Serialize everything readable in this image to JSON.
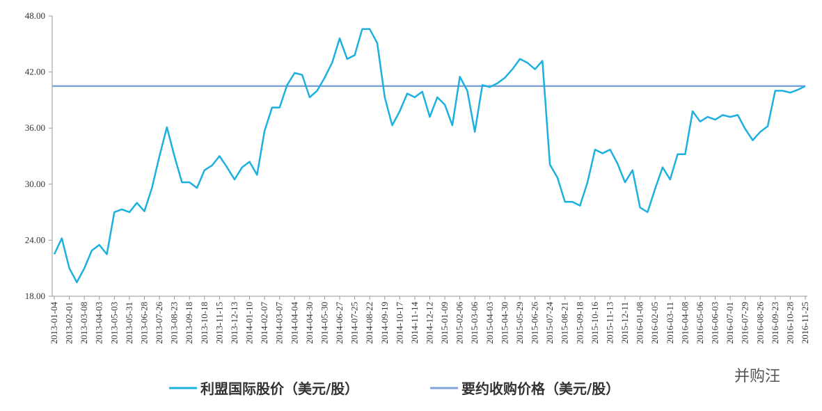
{
  "chart_data": {
    "type": "line",
    "categories": [
      "2013-01-04",
      null,
      "2013-02-01",
      null,
      "2013-03-08",
      null,
      "2013-04-03",
      null,
      "2013-05-03",
      null,
      "2013-05-31",
      null,
      "2013-06-28",
      null,
      "2013-07-26",
      null,
      "2013-08-23",
      null,
      "2013-09-18",
      null,
      "2013-10-18",
      null,
      "2013-11-15",
      null,
      "2013-12-13",
      null,
      "2014-01-10",
      null,
      "2014-02-07",
      null,
      "2014-03-07",
      null,
      "2014-04-04",
      null,
      "2014-04-30",
      null,
      "2014-05-30",
      null,
      "2014-06-27",
      null,
      "2014-07-25",
      null,
      "2014-08-22",
      null,
      "2014-09-19",
      null,
      "2014-10-17",
      null,
      "2014-11-14",
      null,
      "2014-12-12",
      null,
      "2015-01-09",
      null,
      "2015-02-06",
      null,
      "2015-03-06",
      null,
      "2015-04-03",
      null,
      "2015-04-30",
      null,
      "2015-05-29",
      null,
      "2015-06-26",
      null,
      "2015-07-24",
      null,
      "2015-08-21",
      null,
      "2015-09-18",
      null,
      "2015-10-16",
      null,
      "2015-11-13",
      null,
      "2015-12-11",
      null,
      "2016-01-08",
      null,
      "2016-02-05",
      null,
      "2016-03-11",
      null,
      "2016-04-08",
      null,
      "2016-05-06",
      null,
      "2016-06-03",
      null,
      "2016-07-01",
      null,
      "2016-07-29",
      null,
      "2016-08-26",
      null,
      "2016-09-23",
      null,
      "2016-10-28",
      null,
      "2016-11-25"
    ],
    "series": [
      {
        "name": "利盟国际股价（美元/股）",
        "color": "#1cb0e0",
        "values": [
          22.5,
          24.2,
          21,
          19.5,
          21,
          22.9,
          23.5,
          22.5,
          27,
          27.3,
          27,
          28,
          27.1,
          29.6,
          33,
          36.1,
          33,
          30.2,
          30.2,
          29.6,
          31.5,
          32,
          33,
          31.8,
          30.5,
          31.8,
          32.4,
          31,
          35.7,
          38.2,
          38.2,
          40.6,
          41.9,
          41.7,
          39.3,
          40,
          41.4,
          43,
          45.6,
          43.4,
          43.8,
          46.6,
          46.6,
          45.1,
          39.3,
          36.3,
          37.8,
          39.7,
          39.3,
          39.9,
          37.2,
          39.3,
          38.5,
          36.3,
          41.5,
          40,
          35.6,
          40.6,
          40.4,
          40.8,
          41.4,
          42.3,
          43.4,
          43,
          42.3,
          43.2,
          32.1,
          30.7,
          28.1,
          28.1,
          27.7,
          30.2,
          33.7,
          33.3,
          33.7,
          32.2,
          30.2,
          31.5,
          27.5,
          27,
          29.5,
          31.8,
          30.5,
          33.2,
          33.2,
          37.8,
          36.7,
          37.2,
          36.9,
          37.4,
          37.2,
          37.4,
          35.9,
          34.7,
          35.6,
          36.2,
          40,
          40,
          39.8,
          40.1,
          40.5
        ]
      }
    ],
    "reference_line": {
      "name": "要约收购价格（美元/股）",
      "color": "#7fa5d8",
      "value": 40.5
    },
    "ylim": [
      18,
      48
    ],
    "yticks": [
      {
        "value": 18,
        "label": "18.00"
      },
      {
        "value": 24,
        "label": "24.00"
      },
      {
        "value": 30,
        "label": "30.00"
      },
      {
        "value": 36,
        "label": "36.00"
      },
      {
        "value": 42,
        "label": "42.00"
      },
      {
        "value": 48,
        "label": "48.00"
      }
    ],
    "grid": false,
    "watermark": "并购汪"
  }
}
